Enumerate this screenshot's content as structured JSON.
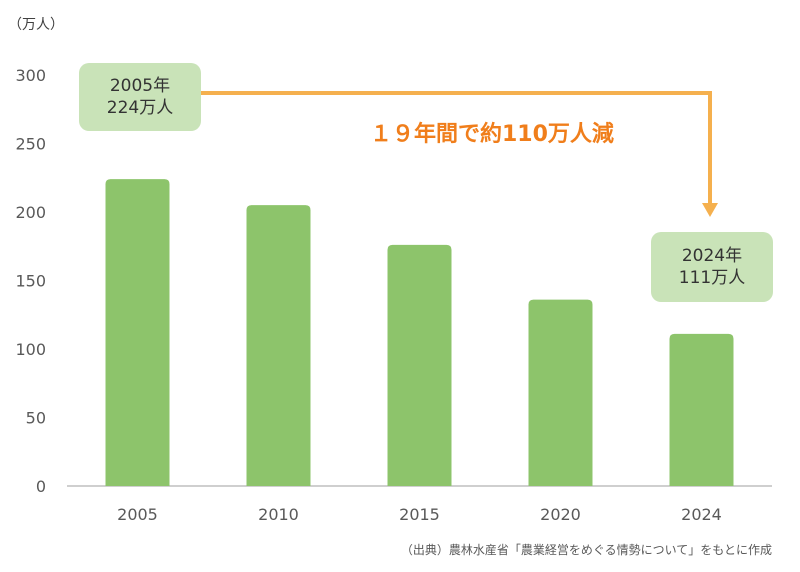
{
  "chart_data": {
    "type": "bar",
    "unit_label": "（万人）",
    "categories": [
      "2005",
      "2010",
      "2015",
      "2020",
      "2024"
    ],
    "values": [
      224,
      205,
      176,
      136,
      111
    ],
    "ylim": [
      0,
      300
    ],
    "yticks": [
      0,
      50,
      100,
      150,
      200,
      250,
      300
    ],
    "bar_color": "#8dc46b",
    "grid": false,
    "annotations": {
      "start": {
        "line1": "2005年",
        "line2": "224万人"
      },
      "end": {
        "line1": "2024年",
        "line2": "111万人"
      },
      "headline": "１９年間で約110万人減",
      "arrow_color": "#f5b04e",
      "headline_color": "#f07e1b"
    }
  },
  "source_note": "（出典）農林水産省「農業経営をめぐる情勢について」をもとに作成"
}
